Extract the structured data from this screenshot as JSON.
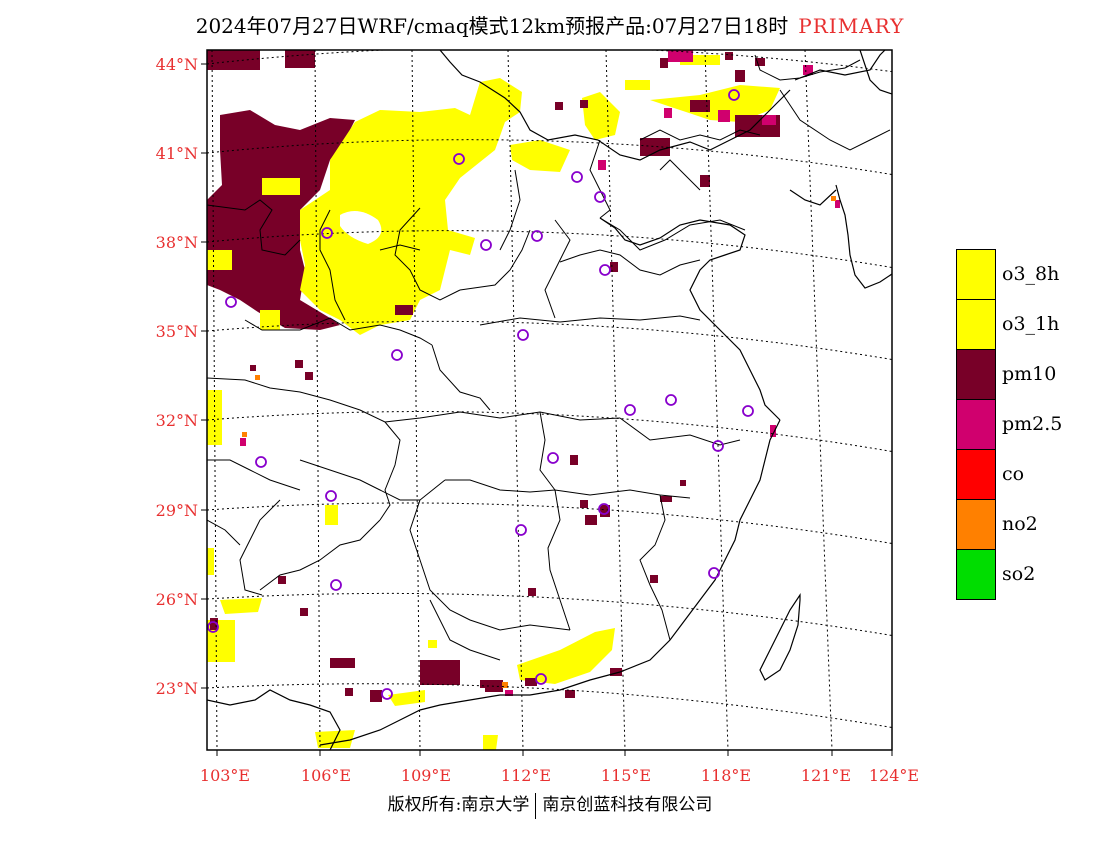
{
  "title": {
    "main": "2024年07月27日WRF/cmaq模式12km预报产品:07月27日18时",
    "tag": "PRIMARY"
  },
  "latitude_labels": [
    "44°N",
    "41°N",
    "38°N",
    "35°N",
    "32°N",
    "29°N",
    "26°N",
    "23°N"
  ],
  "longitude_labels": [
    "103°E",
    "106°E",
    "109°E",
    "112°E",
    "115°E",
    "118°E",
    "121°E",
    "124°E"
  ],
  "legend": [
    {
      "label": "o3_8h",
      "color": "#ffff00"
    },
    {
      "label": "o3_1h",
      "color": "#ffff00"
    },
    {
      "label": "pm10",
      "color": "#780028"
    },
    {
      "label": "pm2.5",
      "color": "#d0006e"
    },
    {
      "label": "co",
      "color": "#ff0000"
    },
    {
      "label": "no2",
      "color": "#ff8000"
    },
    {
      "label": "so2",
      "color": "#00dd00"
    }
  ],
  "footer": {
    "left": "版权所有:南京大学",
    "right": "南京创蓝科技有限公司"
  },
  "colors": {
    "accent": "#e83030",
    "station_marker": "#8800cc"
  }
}
